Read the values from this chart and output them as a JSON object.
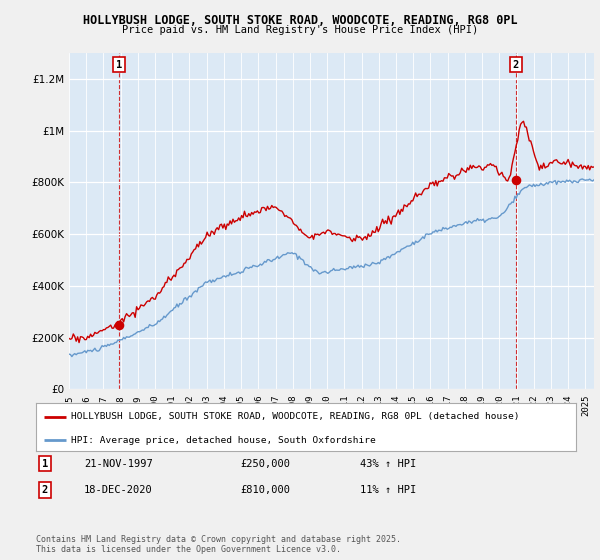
{
  "title_line1": "HOLLYBUSH LODGE, SOUTH STOKE ROAD, WOODCOTE, READING, RG8 0PL",
  "title_line2": "Price paid vs. HM Land Registry's House Price Index (HPI)",
  "legend_label1": "HOLLYBUSH LODGE, SOUTH STOKE ROAD, WOODCOTE, READING, RG8 0PL (detached house)",
  "legend_label2": "HPI: Average price, detached house, South Oxfordshire",
  "annotation1_label": "1",
  "annotation1_date": "21-NOV-1997",
  "annotation1_price": "£250,000",
  "annotation1_hpi": "43% ↑ HPI",
  "annotation2_label": "2",
  "annotation2_date": "18-DEC-2020",
  "annotation2_price": "£810,000",
  "annotation2_hpi": "11% ↑ HPI",
  "footer": "Contains HM Land Registry data © Crown copyright and database right 2025.\nThis data is licensed under the Open Government Licence v3.0.",
  "red_color": "#cc0000",
  "blue_color": "#6699cc",
  "plot_bg_color": "#dce9f5",
  "fig_bg_color": "#f0f0f0",
  "ylim": [
    0,
    1300000
  ],
  "xlim_start": 1995.0,
  "xlim_end": 2025.5,
  "sale1_x": 1997.9,
  "sale1_y": 250000,
  "sale2_x": 2020.96,
  "sale2_y": 810000,
  "vline1_x": 1997.9,
  "vline2_x": 2020.96
}
